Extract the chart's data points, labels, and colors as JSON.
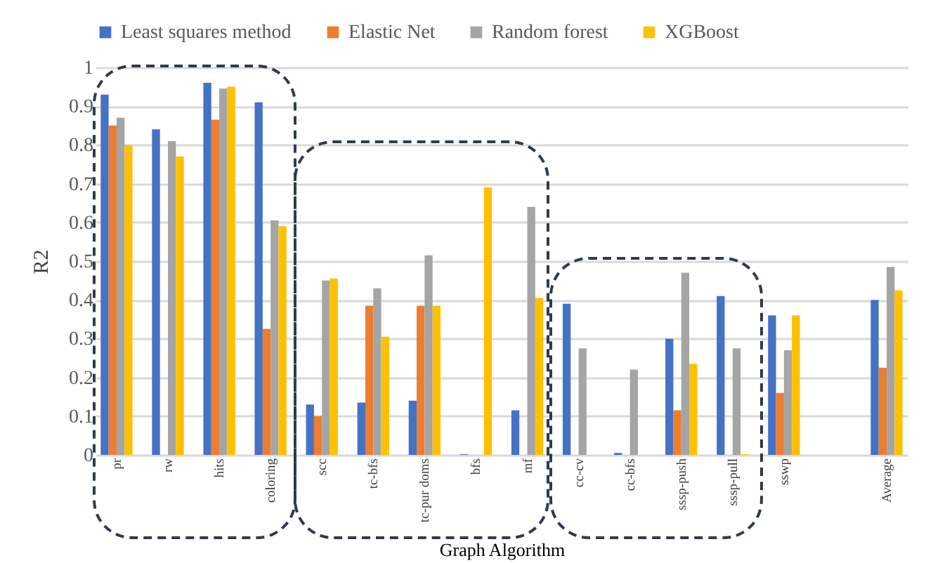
{
  "chart_data": {
    "type": "bar",
    "xlabel": "Graph Algorithm",
    "ylabel": "R2",
    "categories": [
      "pr",
      "rw",
      "hits",
      "coloring",
      "scc",
      "tc-bfs",
      "tc-pur doms",
      "bfs",
      "mf",
      "cc-cv",
      "cc-bfs",
      "sssp-push",
      "sssp-pull",
      "sswp",
      null,
      "Average"
    ],
    "series": [
      {
        "name": "Least squares method",
        "color": "#4472c4",
        "values": [
          0.93,
          0.84,
          0.96,
          0.91,
          0.13,
          0.135,
          0.14,
          0.002,
          0.115,
          0.39,
          0.005,
          0.3,
          0.41,
          0.36,
          null,
          0.4
        ]
      },
      {
        "name": "Elastic Net",
        "color": "#ed7d31",
        "values": [
          0.85,
          null,
          0.865,
          0.325,
          0.1,
          0.385,
          0.385,
          null,
          null,
          null,
          null,
          0.115,
          null,
          0.16,
          null,
          0.225
        ]
      },
      {
        "name": "Random forest",
        "color": "#a5a5a5",
        "values": [
          0.87,
          0.81,
          0.945,
          0.605,
          0.45,
          0.43,
          0.515,
          null,
          0.64,
          0.275,
          0.22,
          0.47,
          0.275,
          0.27,
          null,
          0.485
        ]
      },
      {
        "name": "XGBoost",
        "color": "#ffc000",
        "values": [
          0.8,
          0.77,
          0.95,
          0.59,
          0.455,
          0.305,
          0.385,
          0.69,
          0.405,
          null,
          null,
          0.235,
          0.002,
          0.36,
          null,
          0.425
        ]
      }
    ],
    "ylim": [
      0,
      1
    ],
    "yticks": [
      0,
      0.1,
      0.2,
      0.3,
      0.4,
      0.5,
      0.6,
      0.7,
      0.8,
      0.9,
      1
    ],
    "grid": "y",
    "legend": "top"
  }
}
